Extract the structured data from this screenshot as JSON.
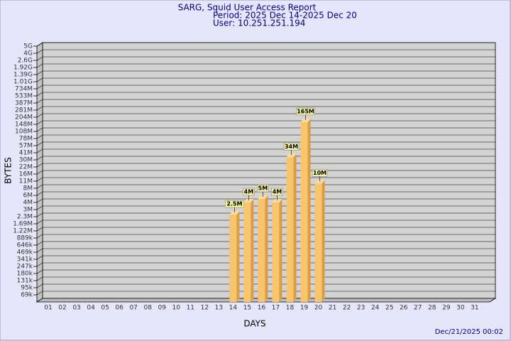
{
  "chart_data": {
    "type": "bar",
    "title": "SARG, Squid User Access Report",
    "subtitle": "Period: 2025 Dec 14-2025 Dec 20",
    "user": "User: 10.251.251.194",
    "xlabel": "DAYS",
    "ylabel": "BYTES",
    "timestamp": "Dec/21/2025 00:02",
    "categories": [
      "01",
      "02",
      "03",
      "04",
      "05",
      "06",
      "07",
      "08",
      "09",
      "10",
      "11",
      "12",
      "13",
      "14",
      "15",
      "16",
      "17",
      "18",
      "19",
      "20",
      "21",
      "22",
      "23",
      "24",
      "25",
      "26",
      "27",
      "28",
      "29",
      "30",
      "31"
    ],
    "values": [
      null,
      null,
      null,
      null,
      null,
      null,
      null,
      null,
      null,
      null,
      null,
      null,
      null,
      2500000,
      4000000,
      5000000,
      4000000,
      34000000,
      165000000,
      10000000,
      null,
      null,
      null,
      null,
      null,
      null,
      null,
      null,
      null,
      null,
      null
    ],
    "value_labels": [
      null,
      null,
      null,
      null,
      null,
      null,
      null,
      null,
      null,
      null,
      null,
      null,
      null,
      "2.5M",
      "4M",
      "5M",
      "4M",
      "34M",
      "165M",
      "10M",
      null,
      null,
      null,
      null,
      null,
      null,
      null,
      null,
      null,
      null,
      null
    ],
    "color": "#f8c46c",
    "ylim": [
      0,
      5000000000
    ],
    "yticks": [
      {
        "value": 69000,
        "label": "69k"
      },
      {
        "value": 95000,
        "label": "95k"
      },
      {
        "value": 131000,
        "label": "131k"
      },
      {
        "value": 180000,
        "label": "180k"
      },
      {
        "value": 247000,
        "label": "247k"
      },
      {
        "value": 341000,
        "label": "341k"
      },
      {
        "value": 469000,
        "label": "469k"
      },
      {
        "value": 646000,
        "label": "646k"
      },
      {
        "value": 889000,
        "label": "889k"
      },
      {
        "value": 1220000,
        "label": "1.22M"
      },
      {
        "value": 1690000,
        "label": "1.69M"
      },
      {
        "value": 2300000,
        "label": "2.3M"
      },
      {
        "value": 3000000,
        "label": "3M"
      },
      {
        "value": 4000000,
        "label": "4M"
      },
      {
        "value": 6000000,
        "label": "6M"
      },
      {
        "value": 8000000,
        "label": "8M"
      },
      {
        "value": 11000000,
        "label": "11M"
      },
      {
        "value": 16000000,
        "label": "16M"
      },
      {
        "value": 22000000,
        "label": "22M"
      },
      {
        "value": 30000000,
        "label": "30M"
      },
      {
        "value": 41000000,
        "label": "41M"
      },
      {
        "value": 57000000,
        "label": "57M"
      },
      {
        "value": 78000000,
        "label": "78M"
      },
      {
        "value": 108000000,
        "label": "108M"
      },
      {
        "value": 148000000,
        "label": "148M"
      },
      {
        "value": 204000000,
        "label": "204M"
      },
      {
        "value": 281000000,
        "label": "281M"
      },
      {
        "value": 387000000,
        "label": "387M"
      },
      {
        "value": 533000000,
        "label": "533M"
      },
      {
        "value": 734000000,
        "label": "734M"
      },
      {
        "value": 1010000000,
        "label": "1.01G"
      },
      {
        "value": 1390000000,
        "label": "1.39G"
      },
      {
        "value": 1920000000,
        "label": "1.92G"
      },
      {
        "value": 2600000000,
        "label": "2.6G"
      },
      {
        "value": 4000000000,
        "label": "4G"
      },
      {
        "value": 5000000000,
        "label": "5G"
      }
    ],
    "grid": true
  }
}
